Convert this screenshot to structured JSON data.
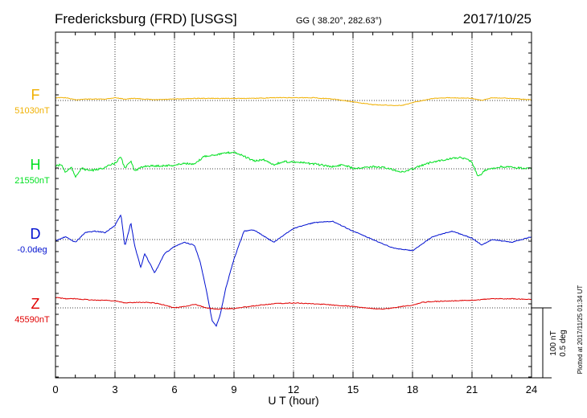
{
  "header": {
    "station": "Fredericksburg (FRD)  [USGS]",
    "coords": "GG ( 38.20°, 282.63°)",
    "date": "2017/10/25"
  },
  "chart_data": {
    "type": "line",
    "title": "Fredericksburg (FRD)  [USGS]",
    "xlabel": "U T (hour)",
    "xlim": [
      0,
      24
    ],
    "xticks": [
      0,
      3,
      6,
      9,
      12,
      15,
      18,
      21,
      24
    ],
    "grid": true,
    "scale_bar": {
      "nt_label": "100 nT",
      "deg_label": "0.5 deg",
      "nt": 100
    },
    "plotted_note": "Plotted at 2017/11/25 01:34 UT",
    "series": [
      {
        "name": "F",
        "baseline_label": "51030nT",
        "baseline": 51030,
        "unit": "nT",
        "color": "#f0b000",
        "x": [
          0,
          0.5,
          1,
          1.5,
          2,
          2.5,
          3,
          3.5,
          4,
          4.5,
          5,
          6,
          7,
          8,
          9,
          10,
          11,
          12,
          13,
          14,
          15,
          16,
          17,
          17.5,
          18,
          19,
          20,
          21,
          21.5,
          22,
          23,
          24
        ],
        "values": [
          51034,
          51034,
          51031,
          51032,
          51032,
          51032,
          51034,
          51032,
          51033,
          51032,
          51031,
          51032,
          51033,
          51033,
          51033,
          51033,
          51034,
          51034,
          51034,
          51032,
          51028,
          51024,
          51023,
          51023,
          51027,
          51033,
          51034,
          51033,
          51030,
          51034,
          51033,
          51031
        ]
      },
      {
        "name": "H",
        "baseline_label": "21550nT",
        "baseline": 21550,
        "unit": "nT",
        "color": "#00e020",
        "x": [
          0,
          0.3,
          0.5,
          0.8,
          1,
          1.3,
          1.6,
          2,
          2.5,
          3,
          3.3,
          3.5,
          3.8,
          4,
          4.5,
          5,
          6,
          6.5,
          7,
          7.5,
          8,
          8.5,
          9,
          9.5,
          10,
          10.5,
          11,
          11.5,
          12,
          13,
          14,
          14.5,
          15,
          16,
          16.5,
          17,
          17.5,
          18,
          19,
          20,
          20.5,
          21,
          21.3,
          21.6,
          22,
          22.5,
          23,
          24
        ],
        "values": [
          21554,
          21556,
          21545,
          21552,
          21538,
          21551,
          21548,
          21548,
          21552,
          21558,
          21567,
          21550,
          21562,
          21547,
          21554,
          21554,
          21555,
          21558,
          21556,
          21568,
          21570,
          21572,
          21574,
          21568,
          21561,
          21563,
          21556,
          21560,
          21560,
          21557,
          21553,
          21556,
          21551,
          21553,
          21552,
          21549,
          21545,
          21550,
          21560,
          21565,
          21566,
          21560,
          21538,
          21547,
          21550,
          21553,
          21552,
          21550
        ]
      },
      {
        "name": "D",
        "baseline_label": "-0.0deg",
        "baseline": 0.0,
        "unit": "deg",
        "color": "#0010d0",
        "x": [
          0,
          0.5,
          1,
          1.5,
          2,
          2.5,
          3,
          3.3,
          3.5,
          3.8,
          4,
          4.3,
          4.5,
          5,
          5.5,
          6,
          6.5,
          7,
          7.3,
          7.6,
          7.9,
          8.1,
          8.3,
          8.6,
          9,
          9.5,
          10,
          11,
          12,
          13,
          14,
          15,
          16,
          17,
          18,
          19,
          20,
          21,
          21.5,
          22,
          23,
          24
        ],
        "values": [
          -0.01,
          0.02,
          -0.02,
          0.05,
          0.06,
          0.05,
          0.1,
          0.18,
          -0.05,
          0.12,
          -0.05,
          -0.2,
          -0.1,
          -0.24,
          -0.1,
          -0.05,
          -0.02,
          -0.04,
          -0.16,
          -0.36,
          -0.58,
          -0.62,
          -0.54,
          -0.34,
          -0.14,
          0.06,
          0.07,
          -0.02,
          0.08,
          0.12,
          0.13,
          0.06,
          0.0,
          -0.06,
          -0.08,
          0.02,
          0.06,
          0.01,
          -0.04,
          0.0,
          -0.02,
          0.02
        ]
      },
      {
        "name": "Z",
        "baseline_label": "45590nT",
        "baseline": 45590,
        "unit": "nT",
        "color": "#e00000",
        "x": [
          0,
          0.5,
          1,
          1.5,
          2,
          2.5,
          3,
          3.5,
          4,
          4.5,
          5,
          5.5,
          6,
          6.5,
          7,
          7.5,
          8,
          8.5,
          9,
          9.5,
          10,
          11,
          12,
          13,
          14,
          15,
          16,
          16.5,
          17,
          17.5,
          18,
          18.5,
          19,
          20,
          21,
          22,
          23,
          24
        ],
        "values": [
          45605,
          45603,
          45603,
          45602,
          45601,
          45601,
          45600,
          45597,
          45598,
          45598,
          45597,
          45594,
          45590,
          45592,
          45595,
          45591,
          45588,
          45589,
          45589,
          45591,
          45593,
          45596,
          45597,
          45596,
          45594,
          45592,
          45589,
          45588,
          45590,
          45592,
          45594,
          45598,
          45599,
          45600,
          45601,
          45603,
          45603,
          45602
        ]
      }
    ]
  }
}
